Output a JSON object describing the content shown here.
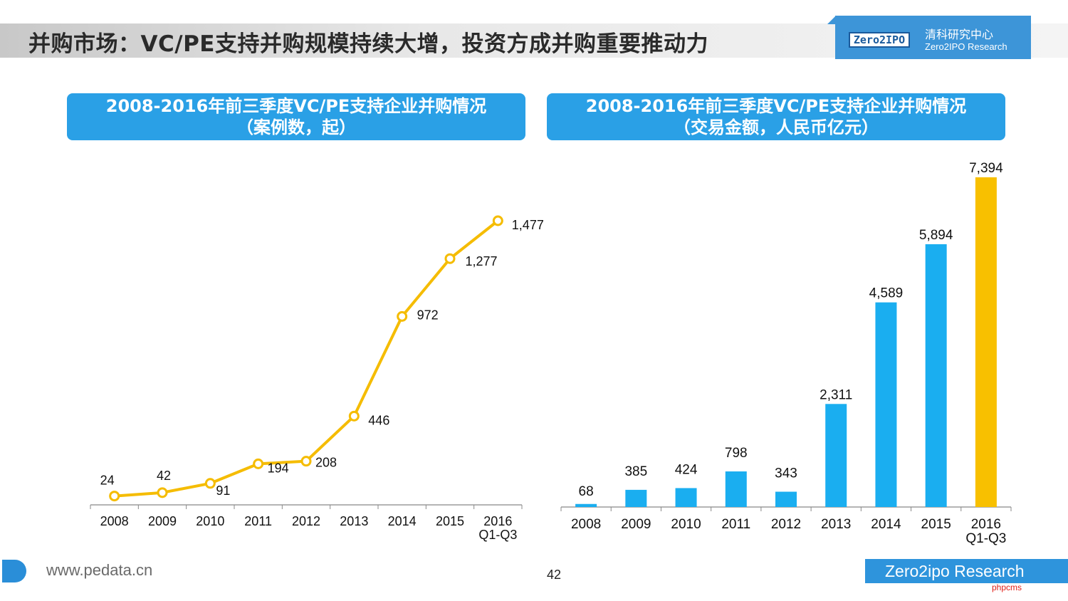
{
  "header": {
    "title": "并购市场：VC/PE支持并购规模持续大增，投资方成并购重要推动力",
    "logo_mark": "Zero2IPO",
    "logo_cn": "清科研究中心",
    "logo_en": "Zero2IPO Research"
  },
  "footer": {
    "url": "www.pedata.cn",
    "page": "42",
    "brand": "Zero2ipo Research",
    "watermark": "phpcms"
  },
  "colors": {
    "accent_blue": "#2aa0e6",
    "bar_blue": "#1aaef0",
    "highlight_yellow": "#f8c000",
    "line_yellow": "#f5bc00"
  },
  "chart_data": [
    {
      "type": "line",
      "title": "2008-2016年前三季度VC/PE支持企业并购情况",
      "subtitle": "（案例数，起）",
      "categories": [
        "2008",
        "2009",
        "2010",
        "2011",
        "2012",
        "2013",
        "2014",
        "2015",
        "2016\nQ1-Q3"
      ],
      "values": [
        24,
        42,
        91,
        194,
        208,
        446,
        972,
        1277,
        1477
      ],
      "value_labels": [
        "24",
        "42",
        "91",
        "194",
        "208",
        "446",
        "972",
        "1,277",
        "1,477"
      ],
      "ylim": [
        0,
        1600
      ],
      "grid": false,
      "xlabel": "",
      "ylabel": ""
    },
    {
      "type": "bar",
      "title": "2008-2016年前三季度VC/PE支持企业并购情况",
      "subtitle": "（交易金额，人民币亿元）",
      "categories": [
        "2008",
        "2009",
        "2010",
        "2011",
        "2012",
        "2013",
        "2014",
        "2015",
        "2016\nQ1-Q3"
      ],
      "values": [
        68,
        385,
        424,
        798,
        343,
        2311,
        4589,
        5894,
        7394
      ],
      "value_labels": [
        "68",
        "385",
        "424",
        "798",
        "343",
        "2,311",
        "4,589",
        "5,894",
        "7,394"
      ],
      "ylim": [
        0,
        7600
      ],
      "grid": false,
      "xlabel": "",
      "ylabel": ""
    }
  ]
}
